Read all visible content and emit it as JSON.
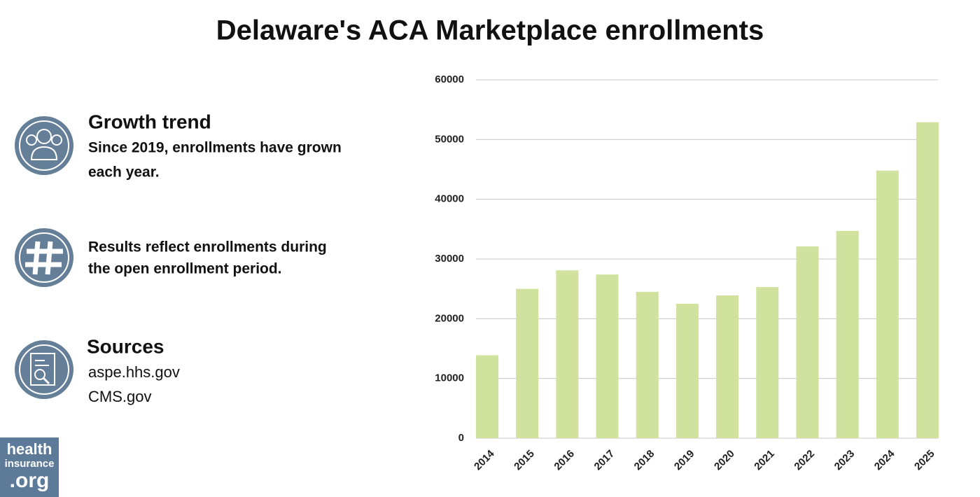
{
  "chart_data": {
    "type": "bar",
    "title": "Delaware's ACA Marketplace enrollments",
    "categories": [
      "2014",
      "2015",
      "2016",
      "2017",
      "2018",
      "2019",
      "2020",
      "2021",
      "2022",
      "2023",
      "2024",
      "2025"
    ],
    "values": [
      13900,
      25000,
      28100,
      27400,
      24500,
      22500,
      23900,
      25300,
      32100,
      34700,
      44800,
      52900
    ],
    "color": "#d0e29e",
    "ylim": [
      0,
      60000
    ],
    "yticks": [
      0,
      10000,
      20000,
      30000,
      40000,
      50000,
      60000
    ],
    "grid": true
  },
  "notes": [
    {
      "heading": "Growth trend",
      "lines": [
        "Since 2019, enrollments have grown",
        "each year."
      ]
    },
    {
      "lines": [
        "Results reflect enrollments during",
        "the open enrollment period."
      ]
    },
    {
      "heading": "Sources",
      "lines": [
        "aspe.hhs.gov",
        "CMS.gov"
      ]
    }
  ],
  "logo": {
    "lines": [
      "health",
      "insurance",
      ".org"
    ]
  }
}
